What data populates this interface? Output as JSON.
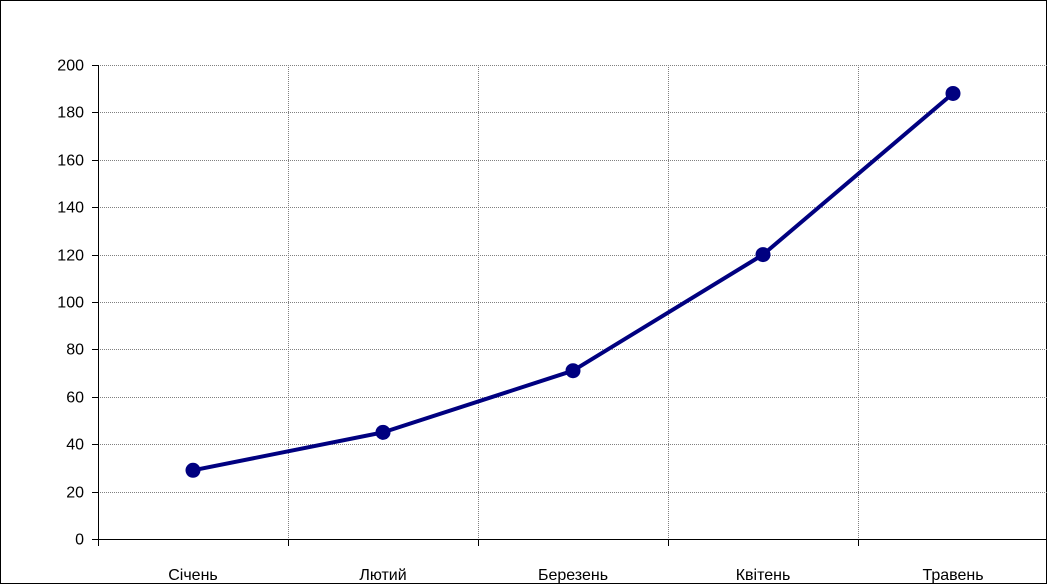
{
  "chart_data": {
    "type": "line",
    "title": "",
    "xlabel": "",
    "ylabel": "",
    "categories": [
      "Січень",
      "Лютий",
      "Березень",
      "Квітень",
      "Травень"
    ],
    "series": [
      {
        "values": [
          29,
          45,
          71,
          120,
          188
        ]
      }
    ],
    "ylim": [
      0,
      200
    ],
    "y_ticks": [
      0,
      20,
      40,
      60,
      80,
      100,
      120,
      140,
      160,
      180,
      200
    ],
    "y_tick_labels": [
      "0",
      "20",
      "40",
      "60",
      "80",
      "100",
      "120",
      "140",
      "160",
      "180",
      "200"
    ],
    "grid": true,
    "legend": "none",
    "colors": {
      "series": "#000080",
      "grid": "#808080",
      "axis": "#000000"
    }
  }
}
